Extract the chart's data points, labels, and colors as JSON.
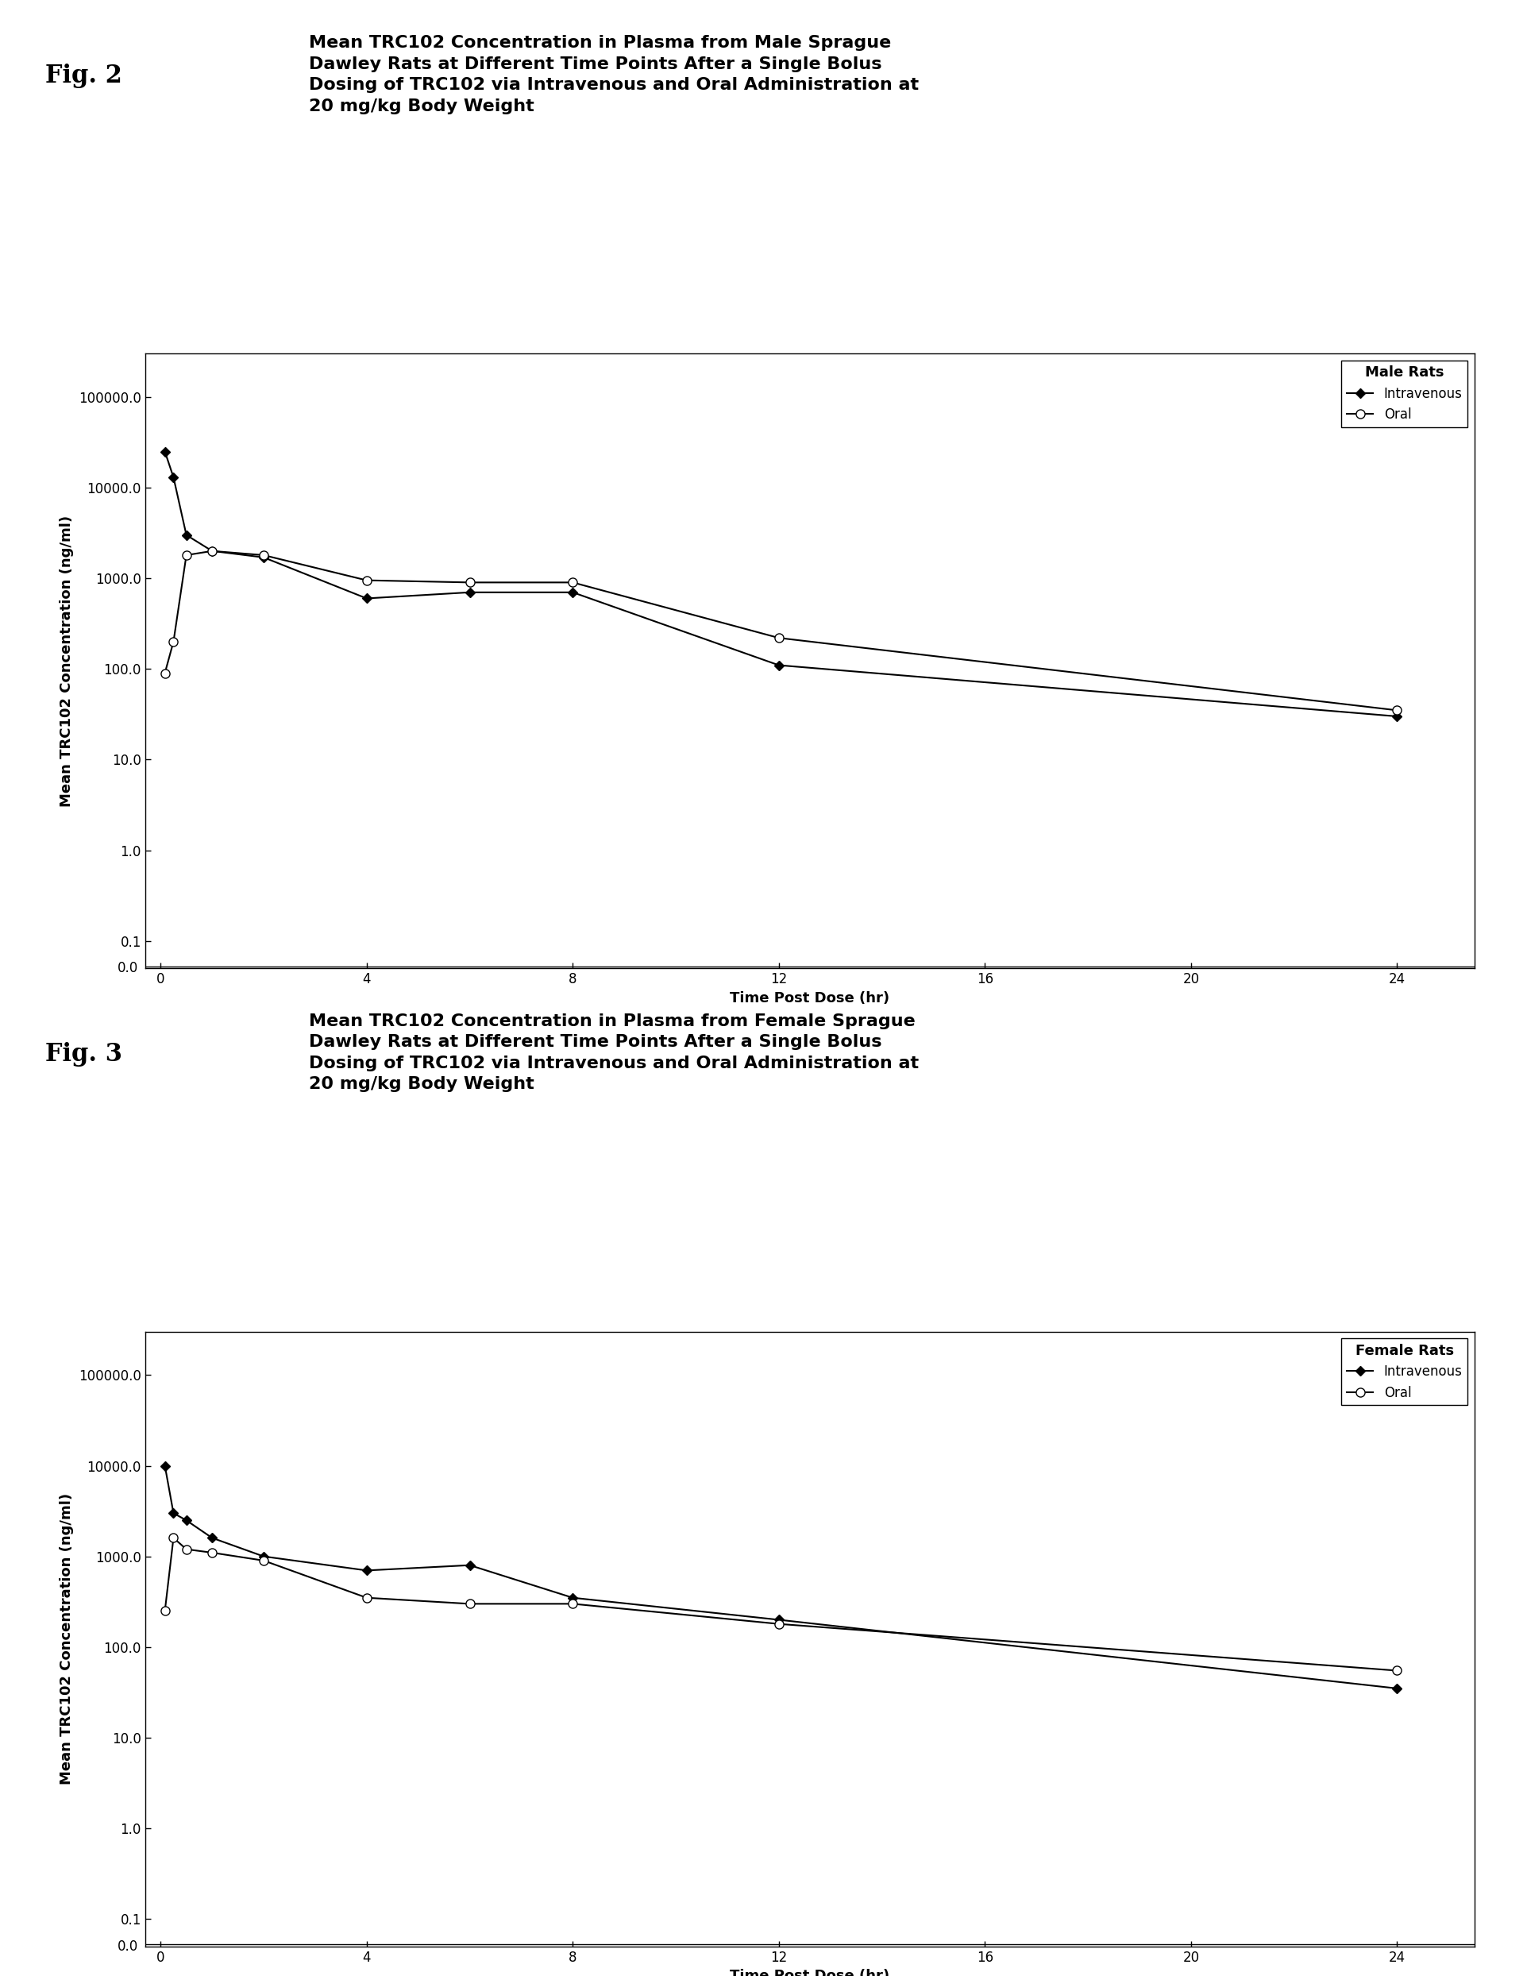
{
  "fig2_title_lines": [
    "Mean TRC102 Concentration in Plasma from Male Sprague",
    "Dawley Rats at Different Time Points After a Single Bolus",
    "Dosing of TRC102 via Intravenous and Oral Administration at",
    "20 mg/kg Body Weight"
  ],
  "fig3_title_lines": [
    "Mean TRC102 Concentration in Plasma from Female Sprague",
    "Dawley Rats at Different Time Points After a Single Bolus",
    "Dosing of TRC102 via Intravenous and Oral Administration at",
    "20 mg/kg Body Weight"
  ],
  "fig2_label": "Fig. 2",
  "fig3_label": "Fig. 3",
  "legend_title_male": "Male Rats",
  "legend_title_female": "Female Rats",
  "legend_iv": "Intravenous",
  "legend_oral": "Oral",
  "xlabel": "Time Post Dose (hr)",
  "ylabel": "Mean TRC102 Concentration (ng/ml)",
  "male_iv_x": [
    0.083,
    0.25,
    0.5,
    1,
    2,
    4,
    6,
    8,
    12,
    24
  ],
  "male_iv_y": [
    25000,
    13000,
    3000,
    2000,
    1700,
    600,
    700,
    700,
    110,
    30
  ],
  "male_oral_x": [
    0.083,
    0.25,
    0.5,
    1,
    2,
    4,
    6,
    8,
    12,
    24
  ],
  "male_oral_y": [
    90,
    200,
    1800,
    2000,
    1800,
    950,
    900,
    900,
    220,
    35
  ],
  "female_iv_x": [
    0.083,
    0.25,
    0.5,
    1,
    2,
    4,
    6,
    8,
    12,
    24
  ],
  "female_iv_y": [
    10000,
    3000,
    2500,
    1600,
    1000,
    700,
    800,
    350,
    200,
    35
  ],
  "female_oral_x": [
    0.083,
    0.25,
    0.5,
    1,
    2,
    4,
    6,
    8,
    12,
    24
  ],
  "female_oral_y": [
    250,
    1600,
    1200,
    1100,
    900,
    350,
    300,
    300,
    180,
    55
  ],
  "xticks": [
    0,
    4,
    8,
    12,
    16,
    20,
    24
  ],
  "ytick_vals": [
    0.1,
    1.0,
    10.0,
    100.0,
    1000.0,
    10000.0,
    100000.0
  ],
  "ytick_labels": [
    "0.1",
    "1.0",
    "10.0",
    "100.0",
    "1000.0",
    "10000.0",
    "100000.0"
  ],
  "ylim_min": 0.05,
  "ylim_max": 300000,
  "xlim_min": -0.3,
  "xlim_max": 25.5,
  "background_color": "#ffffff",
  "line_color": "#000000",
  "title_fontsize": 16,
  "label_fontsize": 13,
  "tick_fontsize": 12,
  "legend_fontsize": 12,
  "fig_label_fontsize": 22
}
